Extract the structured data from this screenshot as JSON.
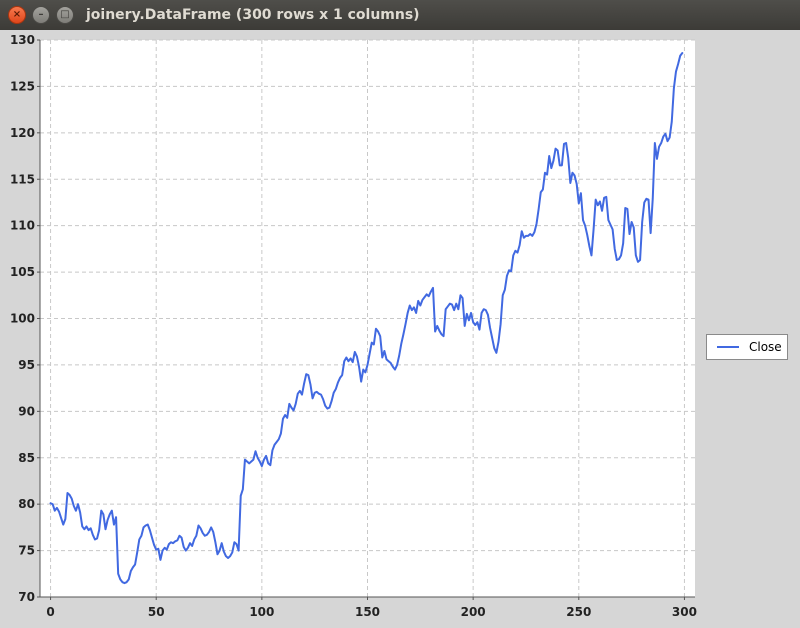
{
  "window": {
    "title": "joinery.DataFrame (300 rows x 1 columns)",
    "buttons": {
      "close": "×",
      "minimize": "–",
      "maximize": "□"
    }
  },
  "colors": {
    "series": "#4169e1",
    "plot_bg": "#ffffff",
    "grid": "#c8c8c8",
    "background": "#d6d6d6"
  },
  "chart_data": {
    "type": "line",
    "title": "",
    "xlabel": "",
    "ylabel": "",
    "xlim": [
      -5,
      305
    ],
    "ylim": [
      70,
      130
    ],
    "xticks": [
      0,
      50,
      100,
      150,
      200,
      250,
      300
    ],
    "yticks": [
      70,
      75,
      80,
      85,
      90,
      95,
      100,
      105,
      110,
      115,
      120,
      125,
      130
    ],
    "grid": true,
    "legend_position": "right",
    "series": [
      {
        "name": "Close",
        "points": [
          [
            0,
            80.1
          ],
          [
            1,
            80.0
          ],
          [
            2,
            79.3
          ],
          [
            3,
            79.6
          ],
          [
            4,
            79.2
          ],
          [
            5,
            78.5
          ],
          [
            6,
            77.8
          ],
          [
            7,
            78.4
          ],
          [
            8,
            81.2
          ],
          [
            9,
            81.0
          ],
          [
            10,
            80.6
          ],
          [
            11,
            79.8
          ],
          [
            12,
            79.3
          ],
          [
            13,
            80.0
          ],
          [
            14,
            79.1
          ],
          [
            15,
            77.6
          ],
          [
            16,
            77.3
          ],
          [
            17,
            77.6
          ],
          [
            18,
            77.2
          ],
          [
            19,
            77.4
          ],
          [
            20,
            76.7
          ],
          [
            21,
            76.2
          ],
          [
            22,
            76.3
          ],
          [
            23,
            77.2
          ],
          [
            24,
            79.3
          ],
          [
            25,
            78.9
          ],
          [
            26,
            77.3
          ],
          [
            27,
            78.3
          ],
          [
            28,
            78.9
          ],
          [
            29,
            79.3
          ],
          [
            30,
            77.8
          ],
          [
            31,
            78.6
          ],
          [
            32,
            72.5
          ],
          [
            33,
            71.9
          ],
          [
            34,
            71.6
          ],
          [
            35,
            71.5
          ],
          [
            36,
            71.6
          ],
          [
            37,
            71.9
          ],
          [
            38,
            72.8
          ],
          [
            39,
            73.2
          ],
          [
            40,
            73.5
          ],
          [
            41,
            74.8
          ],
          [
            42,
            76.2
          ],
          [
            43,
            76.6
          ],
          [
            44,
            77.5
          ],
          [
            45,
            77.7
          ],
          [
            46,
            77.8
          ],
          [
            47,
            77.2
          ],
          [
            48,
            76.4
          ],
          [
            49,
            75.6
          ],
          [
            50,
            75.1
          ],
          [
            51,
            75.2
          ],
          [
            52,
            74.0
          ],
          [
            53,
            75.0
          ],
          [
            54,
            75.3
          ],
          [
            55,
            75.1
          ],
          [
            56,
            75.7
          ],
          [
            57,
            75.9
          ],
          [
            58,
            75.8
          ],
          [
            59,
            76.0
          ],
          [
            60,
            76.1
          ],
          [
            61,
            76.6
          ],
          [
            62,
            76.4
          ],
          [
            63,
            75.4
          ],
          [
            64,
            75.0
          ],
          [
            65,
            75.3
          ],
          [
            66,
            75.8
          ],
          [
            67,
            75.5
          ],
          [
            68,
            76.2
          ],
          [
            69,
            76.6
          ],
          [
            70,
            77.7
          ],
          [
            71,
            77.4
          ],
          [
            72,
            76.9
          ],
          [
            73,
            76.6
          ],
          [
            74,
            76.7
          ],
          [
            75,
            77.0
          ],
          [
            76,
            77.5
          ],
          [
            77,
            77.0
          ],
          [
            78,
            75.9
          ],
          [
            79,
            74.6
          ],
          [
            80,
            75.0
          ],
          [
            81,
            75.8
          ],
          [
            82,
            74.9
          ],
          [
            83,
            74.4
          ],
          [
            84,
            74.2
          ],
          [
            85,
            74.4
          ],
          [
            86,
            74.8
          ],
          [
            87,
            75.9
          ],
          [
            88,
            75.7
          ],
          [
            89,
            75.0
          ],
          [
            90,
            80.9
          ],
          [
            91,
            81.6
          ],
          [
            92,
            84.8
          ],
          [
            93,
            84.6
          ],
          [
            94,
            84.4
          ],
          [
            95,
            84.6
          ],
          [
            96,
            84.8
          ],
          [
            97,
            85.7
          ],
          [
            98,
            85.0
          ],
          [
            99,
            84.6
          ],
          [
            100,
            84.1
          ],
          [
            101,
            84.8
          ],
          [
            102,
            85.2
          ],
          [
            103,
            84.4
          ],
          [
            104,
            84.2
          ],
          [
            105,
            85.8
          ],
          [
            106,
            86.4
          ],
          [
            107,
            86.7
          ],
          [
            108,
            87.0
          ],
          [
            109,
            87.6
          ],
          [
            110,
            89.2
          ],
          [
            111,
            89.6
          ],
          [
            112,
            89.3
          ],
          [
            113,
            90.8
          ],
          [
            114,
            90.4
          ],
          [
            115,
            90.1
          ],
          [
            116,
            90.8
          ],
          [
            117,
            91.9
          ],
          [
            118,
            92.2
          ],
          [
            119,
            91.8
          ],
          [
            120,
            93.0
          ],
          [
            121,
            94.0
          ],
          [
            122,
            93.9
          ],
          [
            123,
            92.9
          ],
          [
            124,
            91.4
          ],
          [
            125,
            92.0
          ],
          [
            126,
            92.1
          ],
          [
            127,
            91.9
          ],
          [
            128,
            91.8
          ],
          [
            129,
            91.3
          ],
          [
            130,
            90.6
          ],
          [
            131,
            90.3
          ],
          [
            132,
            90.4
          ],
          [
            133,
            91.1
          ],
          [
            134,
            92.0
          ],
          [
            135,
            92.4
          ],
          [
            136,
            93.1
          ],
          [
            137,
            93.6
          ],
          [
            138,
            93.9
          ],
          [
            139,
            95.4
          ],
          [
            140,
            95.8
          ],
          [
            141,
            95.4
          ],
          [
            142,
            95.7
          ],
          [
            143,
            95.3
          ],
          [
            144,
            96.4
          ],
          [
            145,
            95.9
          ],
          [
            146,
            94.8
          ],
          [
            147,
            93.2
          ],
          [
            148,
            94.5
          ],
          [
            149,
            94.2
          ],
          [
            150,
            95.0
          ],
          [
            151,
            96.2
          ],
          [
            152,
            97.4
          ],
          [
            153,
            97.2
          ],
          [
            154,
            98.9
          ],
          [
            155,
            98.6
          ],
          [
            156,
            98.1
          ],
          [
            157,
            95.8
          ],
          [
            158,
            96.5
          ],
          [
            159,
            95.6
          ],
          [
            160,
            95.4
          ],
          [
            161,
            95.2
          ],
          [
            162,
            94.8
          ],
          [
            163,
            94.5
          ],
          [
            164,
            95.0
          ],
          [
            165,
            96.0
          ],
          [
            166,
            97.3
          ],
          [
            167,
            98.3
          ],
          [
            168,
            99.4
          ],
          [
            169,
            100.6
          ],
          [
            170,
            101.4
          ],
          [
            171,
            100.9
          ],
          [
            172,
            101.2
          ],
          [
            173,
            100.6
          ],
          [
            174,
            101.9
          ],
          [
            175,
            101.4
          ],
          [
            176,
            102.0
          ],
          [
            177,
            102.3
          ],
          [
            178,
            102.6
          ],
          [
            179,
            102.4
          ],
          [
            180,
            102.9
          ],
          [
            181,
            103.3
          ],
          [
            182,
            98.6
          ],
          [
            183,
            99.2
          ],
          [
            184,
            98.7
          ],
          [
            185,
            98.3
          ],
          [
            186,
            98.1
          ],
          [
            187,
            101.0
          ],
          [
            188,
            101.3
          ],
          [
            189,
            101.6
          ],
          [
            190,
            101.5
          ],
          [
            191,
            100.9
          ],
          [
            192,
            101.6
          ],
          [
            193,
            101.0
          ],
          [
            194,
            102.5
          ],
          [
            195,
            102.2
          ],
          [
            196,
            99.2
          ],
          [
            197,
            100.5
          ],
          [
            198,
            99.8
          ],
          [
            199,
            100.6
          ],
          [
            200,
            99.6
          ],
          [
            201,
            99.3
          ],
          [
            202,
            99.6
          ],
          [
            203,
            98.8
          ],
          [
            204,
            100.6
          ],
          [
            205,
            101.0
          ],
          [
            206,
            100.9
          ],
          [
            207,
            100.4
          ],
          [
            208,
            99.0
          ],
          [
            209,
            97.9
          ],
          [
            210,
            96.8
          ],
          [
            211,
            96.3
          ],
          [
            212,
            97.5
          ],
          [
            213,
            99.4
          ],
          [
            214,
            102.5
          ],
          [
            215,
            103.1
          ],
          [
            216,
            104.6
          ],
          [
            217,
            105.2
          ],
          [
            218,
            105.1
          ],
          [
            219,
            106.8
          ],
          [
            220,
            107.3
          ],
          [
            221,
            107.1
          ],
          [
            222,
            107.9
          ],
          [
            223,
            109.4
          ],
          [
            224,
            108.7
          ],
          [
            225,
            108.9
          ],
          [
            226,
            108.9
          ],
          [
            227,
            109.1
          ],
          [
            228,
            108.9
          ],
          [
            229,
            109.3
          ],
          [
            230,
            110.2
          ],
          [
            231,
            111.8
          ],
          [
            232,
            113.6
          ],
          [
            233,
            113.9
          ],
          [
            234,
            115.7
          ],
          [
            235,
            115.5
          ],
          [
            236,
            117.5
          ],
          [
            237,
            116.2
          ],
          [
            238,
            117.0
          ],
          [
            239,
            118.3
          ],
          [
            240,
            118.1
          ],
          [
            241,
            116.5
          ],
          [
            242,
            116.5
          ],
          [
            243,
            118.8
          ],
          [
            244,
            118.9
          ],
          [
            245,
            117.3
          ],
          [
            246,
            114.6
          ],
          [
            247,
            115.7
          ],
          [
            248,
            115.4
          ],
          [
            249,
            114.5
          ],
          [
            250,
            112.4
          ],
          [
            251,
            113.5
          ],
          [
            252,
            110.6
          ],
          [
            253,
            110.0
          ],
          [
            254,
            109.0
          ],
          [
            255,
            107.8
          ],
          [
            256,
            106.8
          ],
          [
            257,
            109.6
          ],
          [
            258,
            112.8
          ],
          [
            259,
            112.2
          ],
          [
            260,
            112.6
          ],
          [
            261,
            111.6
          ],
          [
            262,
            113.0
          ],
          [
            263,
            113.1
          ],
          [
            264,
            110.6
          ],
          [
            265,
            110.1
          ],
          [
            266,
            109.6
          ],
          [
            267,
            107.5
          ],
          [
            268,
            106.3
          ],
          [
            269,
            106.4
          ],
          [
            270,
            106.8
          ],
          [
            271,
            108.1
          ],
          [
            272,
            111.9
          ],
          [
            273,
            111.8
          ],
          [
            274,
            109.1
          ],
          [
            275,
            110.4
          ],
          [
            276,
            109.8
          ],
          [
            277,
            106.8
          ],
          [
            278,
            106.1
          ],
          [
            279,
            106.3
          ],
          [
            280,
            110.4
          ],
          [
            281,
            112.5
          ],
          [
            282,
            112.9
          ],
          [
            283,
            112.8
          ],
          [
            284,
            109.2
          ],
          [
            285,
            112.9
          ],
          [
            286,
            118.9
          ],
          [
            287,
            117.2
          ],
          [
            288,
            118.5
          ],
          [
            289,
            118.9
          ],
          [
            290,
            119.6
          ],
          [
            291,
            119.9
          ],
          [
            292,
            119.1
          ],
          [
            293,
            119.5
          ],
          [
            294,
            121.2
          ],
          [
            295,
            124.8
          ],
          [
            296,
            126.6
          ],
          [
            297,
            127.4
          ],
          [
            298,
            128.3
          ],
          [
            299,
            128.6
          ]
        ]
      }
    ]
  }
}
